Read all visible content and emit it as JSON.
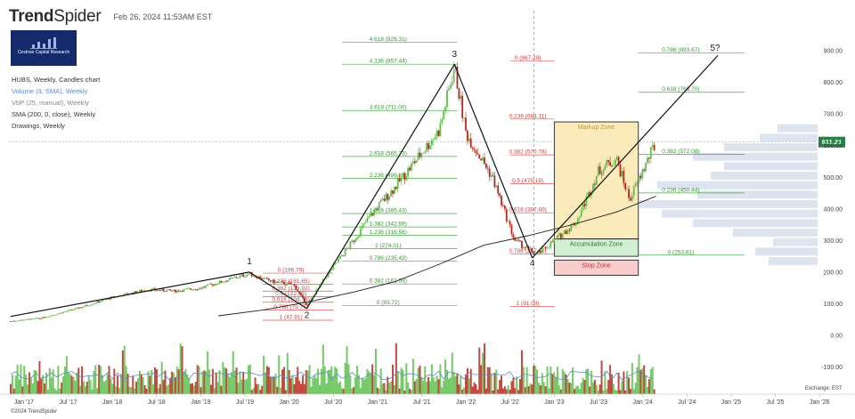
{
  "header": {
    "brand_bold": "Trend",
    "brand_light": "Spider",
    "timestamp": "Feb 26, 2024 11:53AM EST"
  },
  "logo": {
    "text": "Cestrian Capital Research"
  },
  "legend": {
    "items": [
      {
        "label": "HUBS, Weekly, Candles chart",
        "color": "#333333"
      },
      {
        "label": "Volume (9, SMA), Weekly",
        "color": "#5b8bd0"
      },
      {
        "label": "VbP (25, manual), Weekly",
        "color": "#8a8a8a"
      },
      {
        "label": "SMA (200, 0, close), Weekly",
        "color": "#333333"
      },
      {
        "label": "Drawings, Weekly",
        "color": "#333333"
      }
    ]
  },
  "footer": {
    "copyright": "©2024 TrendSpider",
    "exchange": "Exchange: EST"
  },
  "chart_data": {
    "type": "candlestick",
    "symbol": "HUBS",
    "timeframe": "Weekly",
    "last_price_label": "611.21",
    "last_price": 611.21,
    "y_range": [
      -150,
      960
    ],
    "y_ticks": [
      {
        "v": 900,
        "label": "900.00"
      },
      {
        "v": 800,
        "label": "800.00"
      },
      {
        "v": 700,
        "label": "700.00"
      },
      {
        "v": 600,
        "label": "600.00"
      },
      {
        "v": 500,
        "label": "500.00"
      },
      {
        "v": 400,
        "label": "400.00"
      },
      {
        "v": 300,
        "label": "300.00"
      },
      {
        "v": 200,
        "label": "200.00"
      },
      {
        "v": 100,
        "label": "100.00"
      },
      {
        "v": 0,
        "label": "0.00"
      },
      {
        "v": -100,
        "label": "-100.00"
      }
    ],
    "x_range": [
      2016.83,
      2026.25
    ],
    "x_ticks": [
      {
        "t": 2017.0,
        "label": "Jan '17"
      },
      {
        "t": 2017.5,
        "label": "Jul '17"
      },
      {
        "t": 2018.0,
        "label": "Jan '18"
      },
      {
        "t": 2018.5,
        "label": "Jul '18"
      },
      {
        "t": 2019.0,
        "label": "Jan '19"
      },
      {
        "t": 2019.5,
        "label": "Jul '19"
      },
      {
        "t": 2020.0,
        "label": "Jan '20"
      },
      {
        "t": 2020.5,
        "label": "Jul '20"
      },
      {
        "t": 2021.0,
        "label": "Jan '21"
      },
      {
        "t": 2021.5,
        "label": "Jul '21"
      },
      {
        "t": 2022.0,
        "label": "Jan '22"
      },
      {
        "t": 2022.5,
        "label": "Jul '22"
      },
      {
        "t": 2023.0,
        "label": "Jan '23"
      },
      {
        "t": 2023.5,
        "label": "Jul '23"
      },
      {
        "t": 2024.0,
        "label": "Jan '24"
      },
      {
        "t": 2024.5,
        "label": "Jul '24"
      },
      {
        "t": 2025.0,
        "label": "Jan '25"
      },
      {
        "t": 2025.5,
        "label": "Jul '25"
      },
      {
        "t": 2026.0,
        "label": "Jan '26"
      }
    ],
    "price_path": [
      [
        2016.85,
        45
      ],
      [
        2017.2,
        55
      ],
      [
        2017.6,
        85
      ],
      [
        2018.0,
        120
      ],
      [
        2018.4,
        145
      ],
      [
        2018.7,
        140
      ],
      [
        2019.0,
        150
      ],
      [
        2019.3,
        175
      ],
      [
        2019.55,
        195
      ],
      [
        2019.8,
        170
      ],
      [
        2020.05,
        160
      ],
      [
        2020.2,
        95
      ],
      [
        2020.4,
        180
      ],
      [
        2020.7,
        290
      ],
      [
        2020.95,
        390
      ],
      [
        2021.2,
        470
      ],
      [
        2021.45,
        560
      ],
      [
        2021.7,
        650
      ],
      [
        2021.87,
        850
      ],
      [
        2022.0,
        640
      ],
      [
        2022.3,
        500
      ],
      [
        2022.55,
        300
      ],
      [
        2022.8,
        255
      ],
      [
        2023.0,
        300
      ],
      [
        2023.25,
        360
      ],
      [
        2023.5,
        520
      ],
      [
        2023.7,
        560
      ],
      [
        2023.85,
        430
      ],
      [
        2024.0,
        520
      ],
      [
        2024.15,
        611
      ]
    ],
    "sma200": [
      [
        2019.2,
        62
      ],
      [
        2019.7,
        80
      ],
      [
        2020.2,
        105
      ],
      [
        2020.7,
        135
      ],
      [
        2021.2,
        170
      ],
      [
        2021.7,
        225
      ],
      [
        2022.2,
        285
      ],
      [
        2022.7,
        315
      ],
      [
        2023.2,
        350
      ],
      [
        2023.7,
        390
      ],
      [
        2024.15,
        440
      ]
    ],
    "trend_lines": [
      [
        [
          2016.85,
          60
        ],
        [
          2019.55,
          200
        ]
      ],
      [
        [
          2019.55,
          200
        ],
        [
          2020.2,
          85
        ]
      ],
      [
        [
          2020.2,
          85
        ],
        [
          2021.87,
          857
        ]
      ],
      [
        [
          2021.87,
          857
        ],
        [
          2022.75,
          245
        ]
      ],
      [
        [
          2022.75,
          245
        ],
        [
          2024.85,
          885
        ]
      ]
    ],
    "wave_labels": [
      {
        "t": 2019.55,
        "v": 225,
        "label": "1"
      },
      {
        "t": 2020.2,
        "v": 55,
        "label": "2"
      },
      {
        "t": 2021.87,
        "v": 880,
        "label": "3"
      },
      {
        "t": 2022.75,
        "v": 220,
        "label": "4"
      },
      {
        "t": 2024.82,
        "v": 900,
        "label": "5?"
      }
    ],
    "fib_sets": [
      {
        "color": "#d04040",
        "t0": 2019.7,
        "t1": 2020.5,
        "levels": [
          {
            "v": 196.79,
            "label": "0 (196.79)"
          },
          {
            "v": 161.65,
            "label": "0.236 (161.65)"
          },
          {
            "v": 139.92,
            "label": "0.382 (139.92)"
          },
          {
            "v": 122.35,
            "label": "0.5 (122.35)"
          },
          {
            "v": 104.78,
            "label": "0.618 (104.78)"
          },
          {
            "v": 79.77,
            "label": "0.786 (79.77)"
          },
          {
            "v": 47.91,
            "label": "1 (47.91)"
          }
        ]
      },
      {
        "color": "#2e9a2e",
        "t0": 2020.6,
        "t1": 2021.9,
        "levels": [
          {
            "v": 926.31,
            "label": "4.618 (926.31)"
          },
          {
            "v": 857.44,
            "label": "4.236 (857.44)"
          },
          {
            "v": 711.0,
            "label": "3.618 (711.00)"
          },
          {
            "v": 565.73,
            "label": "2.618 (565.73)"
          },
          {
            "v": 496.86,
            "label": "2.236 (496.86)"
          },
          {
            "v": 385.43,
            "label": "1.618 (385.43)"
          },
          {
            "v": 342.89,
            "label": "1.382 (342.89)"
          },
          {
            "v": 316.56,
            "label": "1.236 (316.56)"
          },
          {
            "v": 274.01,
            "label": "1 (274.01)"
          },
          {
            "v": 235.43,
            "label": "0.786 (235.43)"
          },
          {
            "v": 162.59,
            "label": "0.382 (162.59)"
          },
          {
            "v": 93.72,
            "label": "0 (93.72)"
          }
        ]
      },
      {
        "color": "#d04040",
        "t0": 2022.5,
        "t1": 2023.0,
        "levels": [
          {
            "v": 867.29,
            "label": "0 (867.29)"
          },
          {
            "v": 684.11,
            "label": "0.236 (684.11)"
          },
          {
            "v": 570.78,
            "label": "0.382 (570.78)"
          },
          {
            "v": 479.19,
            "label": "0.5 (479.19)"
          },
          {
            "v": 387.6,
            "label": "0.618 (387.60)"
          },
          {
            "v": 257.19,
            "label": "0.786 (257.19)"
          },
          {
            "v": 91.09,
            "label": "1 (91.09)"
          }
        ]
      },
      {
        "color": "#2e9a2e",
        "t0": 2023.95,
        "t1": 2025.15,
        "levels": [
          {
            "v": 893.67,
            "label": "0.786 (893.67)"
          },
          {
            "v": 768.7,
            "label": "0.618 (768.70)"
          },
          {
            "v": 572.08,
            "label": "0.382 (572.08)"
          },
          {
            "v": 450.44,
            "label": "0.236 (450.44)"
          },
          {
            "v": 253.81,
            "label": "0 (253.81)"
          }
        ]
      }
    ],
    "zones": [
      {
        "label": "Markup Zone",
        "t0": 2023.0,
        "t1": 2023.95,
        "v0": 305,
        "v1": 675,
        "fill": "#fbe9b4",
        "stroke": "#222222",
        "text_color": "#c8961e"
      },
      {
        "label": "Accumulation Zone",
        "t0": 2023.0,
        "t1": 2023.95,
        "v0": 250,
        "v1": 305,
        "fill": "#cfeecf",
        "stroke": "#222222",
        "text_color": "#2e7a2e"
      },
      {
        "label": "Stop Zone",
        "t0": 2023.0,
        "t1": 2023.95,
        "v0": 190,
        "v1": 238,
        "fill": "#f8c8c8",
        "stroke": "#222222",
        "text_color": "#c03030"
      }
    ],
    "volume_color_up": "#5fbf4f",
    "volume_color_down": "#b52a1f",
    "vbp": [
      {
        "v": 235,
        "w": 55
      },
      {
        "v": 265,
        "w": 70
      },
      {
        "v": 295,
        "w": 50
      },
      {
        "v": 325,
        "w": 95
      },
      {
        "v": 355,
        "w": 140
      },
      {
        "v": 385,
        "w": 175
      },
      {
        "v": 415,
        "w": 200
      },
      {
        "v": 445,
        "w": 135
      },
      {
        "v": 475,
        "w": 180
      },
      {
        "v": 505,
        "w": 120
      },
      {
        "v": 535,
        "w": 105
      },
      {
        "v": 565,
        "w": 140
      },
      {
        "v": 595,
        "w": 105
      },
      {
        "v": 625,
        "w": 65
      },
      {
        "v": 655,
        "w": 45
      }
    ]
  }
}
